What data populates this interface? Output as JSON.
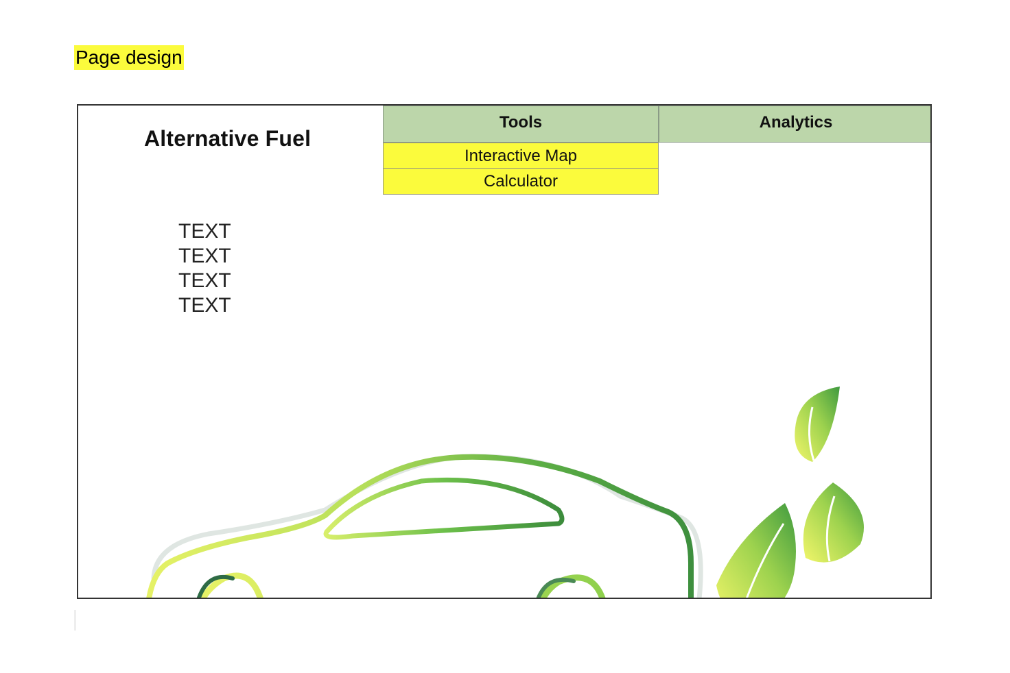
{
  "document": {
    "heading": "Page design",
    "heading_highlight": "#fbfb3c"
  },
  "site": {
    "title": "Alternative Fuel",
    "nav": {
      "tools_label": "Tools",
      "analytics_label": "Analytics",
      "tab_color": "#bcd6aa",
      "tools_menu": [
        "Interactive Map",
        "Calculator"
      ],
      "menu_color": "#fbfb3c"
    },
    "body_lines": [
      "TEXT",
      "TEXT",
      "TEXT",
      "TEXT"
    ],
    "hero_image": {
      "icons": [
        "car-outline-icon",
        "leaf-icon"
      ],
      "colors": [
        "#f4f76a",
        "#9bd44c",
        "#3e9a3e"
      ]
    }
  }
}
